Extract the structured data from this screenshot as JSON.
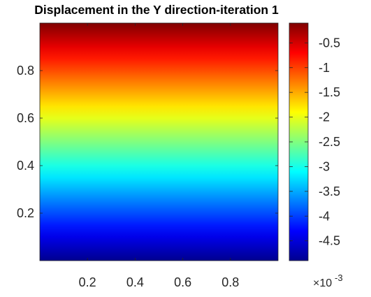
{
  "chart_data": {
    "type": "heatmap",
    "title": "Displacement in the Y direction-iteration 1",
    "xlabel": "",
    "ylabel": "",
    "xlim": [
      0.0,
      1.0
    ],
    "ylim": [
      0.0,
      1.0
    ],
    "xticks": [
      0.2,
      0.4,
      0.6,
      0.8
    ],
    "xtick_labels": [
      "0.2",
      "0.4",
      "0.6",
      "0.8"
    ],
    "yticks": [
      0.2,
      0.4,
      0.6,
      0.8
    ],
    "ytick_labels": [
      "0.2",
      "0.4",
      "0.6",
      "0.8"
    ],
    "field": {
      "description_of_variation": "uniform in x; varies linearly in y",
      "y": [
        0.0,
        1.0
      ],
      "value": [
        -0.0049,
        -0.0001
      ]
    },
    "colormap": "jet",
    "colorbar": {
      "range": [
        -0.0049,
        -0.0001
      ],
      "ticks": [
        -0.0045,
        -0.004,
        -0.0035,
        -0.003,
        -0.0025,
        -0.002,
        -0.0015,
        -0.001,
        -0.0005
      ],
      "tick_labels": [
        "-4.5",
        "-4",
        "-3.5",
        "-3",
        "-2.5",
        "-2",
        "-1.5",
        "-1",
        "-0.5"
      ],
      "exponent_base": "×10",
      "exponent_power": "-3",
      "placement": "right"
    },
    "grid": false
  }
}
